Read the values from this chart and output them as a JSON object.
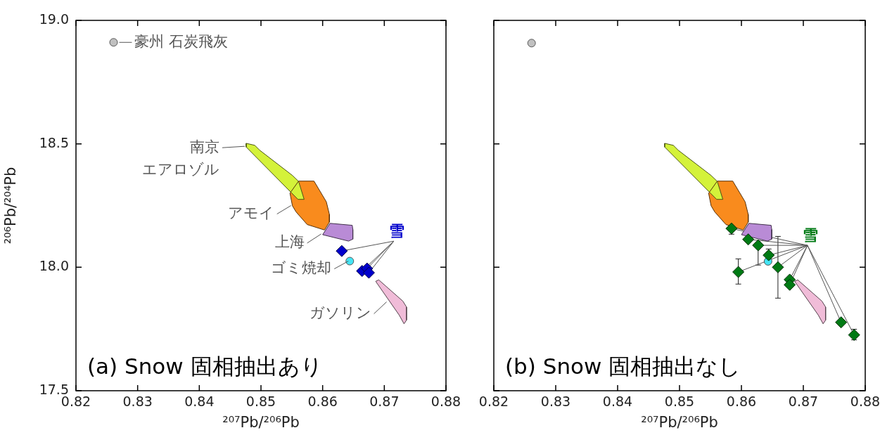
{
  "chart_data": [
    {
      "type": "scatter",
      "title": "(a) Snow 固相抽出あり",
      "xlabel": "²⁰⁷Pb/²⁰⁶Pb",
      "ylabel": "²⁰⁶Pb/²⁰⁴Pb",
      "xlim": [
        0.82,
        0.88
      ],
      "ylim": [
        17.5,
        19.0
      ],
      "xticks": [
        0.82,
        0.83,
        0.84,
        0.85,
        0.86,
        0.87,
        0.88
      ],
      "yticks": [
        17.5,
        {
          "value": 18,
          "label": "18.0"
        },
        18.5,
        {
          "value": 19,
          "label": "19.0"
        }
      ],
      "legend": false,
      "series": [
        {
          "type": "area",
          "color": "#f98b1d",
          "x": [
            0.8561,
            0.8586,
            0.8606,
            0.8611,
            0.8611,
            0.8603,
            0.8575,
            0.8557,
            0.8551,
            0.8547
          ],
          "values": [
            18.349,
            18.349,
            18.265,
            18.214,
            18.183,
            18.151,
            18.173,
            18.224,
            18.249,
            18.3
          ]
        },
        {
          "type": "area",
          "color": "#d4f23a",
          "x": [
            0.8476,
            0.8476,
            0.856,
            0.857,
            0.8561,
            0.8551,
            0.8498,
            0.849
          ],
          "values": [
            18.502,
            18.487,
            18.275,
            18.275,
            18.348,
            18.372,
            18.474,
            18.494
          ]
        },
        {
          "type": "area",
          "color": "#b98bd6",
          "x": [
            0.8612,
            0.8648,
            0.8649,
            0.8649,
            0.8642,
            0.86
          ],
          "values": [
            18.178,
            18.17,
            18.153,
            18.114,
            18.106,
            18.132
          ]
        },
        {
          "type": "area",
          "color": "#f0bcd8",
          "x": [
            0.8686,
            0.8691,
            0.873,
            0.8736,
            0.8736,
            0.8732,
            0.8724
          ],
          "values": [
            17.943,
            17.949,
            17.863,
            17.839,
            17.786,
            17.771,
            17.807
          ]
        },
        {
          "type": "scatter",
          "marker": "circle",
          "color": "#c0c0c0",
          "x": [
            0.8261
          ],
          "values": [
            18.911
          ]
        },
        {
          "type": "scatter",
          "marker": "circle",
          "color": "#44e4f4",
          "x": [
            0.8644
          ],
          "values": [
            18.025
          ]
        },
        {
          "type": "scatter",
          "marker": "diamond",
          "name": "雪",
          "color": "#0000cc",
          "x": [
            0.8631,
            0.8664,
            0.8672,
            0.8675
          ],
          "values": [
            18.066,
            17.985,
            17.995,
            17.978
          ]
        }
      ],
      "annotations": [
        {
          "text": "豪州 石炭飛灰",
          "x": 0.8261,
          "y": 18.911
        },
        {
          "text": "南京",
          "x": 0.8476,
          "y": 18.49
        },
        {
          "text": "エアロゾル",
          "x": 0.8476,
          "y": 18.49
        },
        {
          "text": "アモイ",
          "x": 0.8551,
          "y": 18.25
        },
        {
          "text": "上海",
          "x": 0.86,
          "y": 18.135
        },
        {
          "text": "ゴミ焼却",
          "x": 0.8644,
          "y": 18.025
        },
        {
          "text": "ガソリン",
          "x": 0.8706,
          "y": 17.86
        }
      ]
    },
    {
      "type": "scatter",
      "title": "(b) Snow 固相抽出なし",
      "xlabel": "²⁰⁷Pb/²⁰⁶Pb",
      "xlim": [
        0.82,
        0.88
      ],
      "ylim": [
        17.5,
        19.0
      ],
      "xticks": [
        0.82,
        0.83,
        0.84,
        0.85,
        0.86,
        0.87,
        0.88
      ],
      "yticks": [
        17.5,
        18,
        18.5,
        19
      ],
      "tick_labels": "x",
      "legend": false,
      "series": [
        {
          "type": "area",
          "color": "#f98b1d",
          "x": [
            0.8561,
            0.8586,
            0.8606,
            0.8611,
            0.8611,
            0.8603,
            0.8575,
            0.8557,
            0.8551,
            0.8547
          ],
          "values": [
            18.349,
            18.349,
            18.265,
            18.214,
            18.183,
            18.151,
            18.173,
            18.224,
            18.249,
            18.3
          ]
        },
        {
          "type": "area",
          "color": "#d4f23a",
          "x": [
            0.8476,
            0.8476,
            0.856,
            0.857,
            0.8561,
            0.8551,
            0.8498,
            0.849
          ],
          "values": [
            18.502,
            18.487,
            18.275,
            18.275,
            18.348,
            18.372,
            18.474,
            18.494
          ]
        },
        {
          "type": "area",
          "color": "#b98bd6",
          "x": [
            0.8612,
            0.8648,
            0.8649,
            0.8649,
            0.8642,
            0.86
          ],
          "values": [
            18.178,
            18.17,
            18.153,
            18.114,
            18.106,
            18.132
          ]
        },
        {
          "type": "area",
          "color": "#f0bcd8",
          "x": [
            0.8686,
            0.8691,
            0.873,
            0.8736,
            0.8736,
            0.8732,
            0.8724
          ],
          "values": [
            17.943,
            17.949,
            17.863,
            17.839,
            17.786,
            17.771,
            17.807
          ]
        },
        {
          "type": "scatter",
          "marker": "circle",
          "color": "#c0c0c0",
          "x": [
            0.8261
          ],
          "values": [
            18.908
          ]
        },
        {
          "type": "scatter",
          "marker": "circle",
          "color": "#44e4f4",
          "x": [
            0.8643
          ],
          "values": [
            18.024
          ]
        },
        {
          "type": "scatter",
          "marker": "diamond",
          "name": "雪",
          "color": "#007a14",
          "x": [
            0.8584,
            0.8611,
            0.8627,
            0.8644,
            0.8659,
            0.8595,
            0.8678,
            0.8678,
            0.8761,
            0.8782
          ],
          "values": [
            18.157,
            18.113,
            18.089,
            18.049,
            18.0,
            17.981,
            17.95,
            17.929,
            17.777,
            17.726
          ],
          "errors": [
            [
              18.134,
              18.18
            ],
            null,
            [
              18.009,
              18.095
            ],
            [
              18.035,
              18.074
            ],
            [
              17.875,
              18.125
            ],
            [
              17.932,
              18.034
            ],
            null,
            null,
            null,
            [
              17.706,
              17.749
            ]
          ]
        }
      ]
    }
  ]
}
